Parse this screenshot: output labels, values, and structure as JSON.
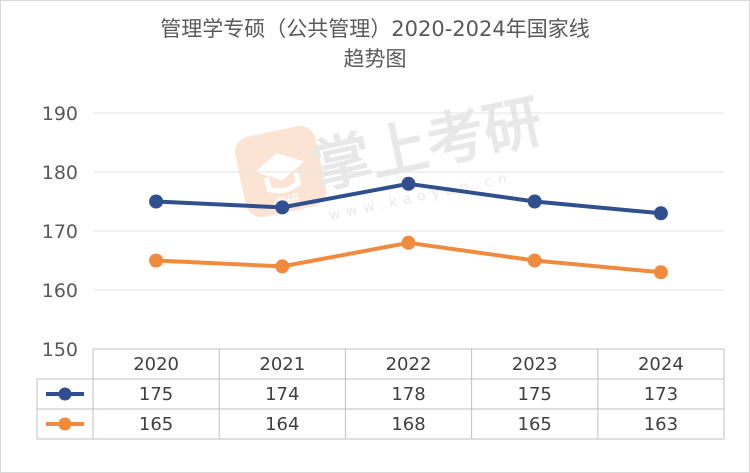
{
  "chart_data": {
    "type": "line",
    "title_line1": "管理学专硕（公共管理）2020-2024年国家线",
    "title_line2": "趋势图",
    "categories": [
      "2020",
      "2021",
      "2022",
      "2023",
      "2024"
    ],
    "ylim": [
      150,
      190
    ],
    "yticks": [
      150,
      160,
      170,
      180,
      190
    ],
    "grid": true,
    "legend": "data-table",
    "series": [
      {
        "values": [
          175,
          174,
          178,
          175,
          173
        ],
        "color": "#2f4f8f"
      },
      {
        "values": [
          165,
          164,
          168,
          165,
          163
        ],
        "color": "#f08a3c"
      }
    ]
  },
  "watermark": {
    "brand": "掌上考研",
    "badge": "考研",
    "url": "www.kaoyan.cn"
  }
}
